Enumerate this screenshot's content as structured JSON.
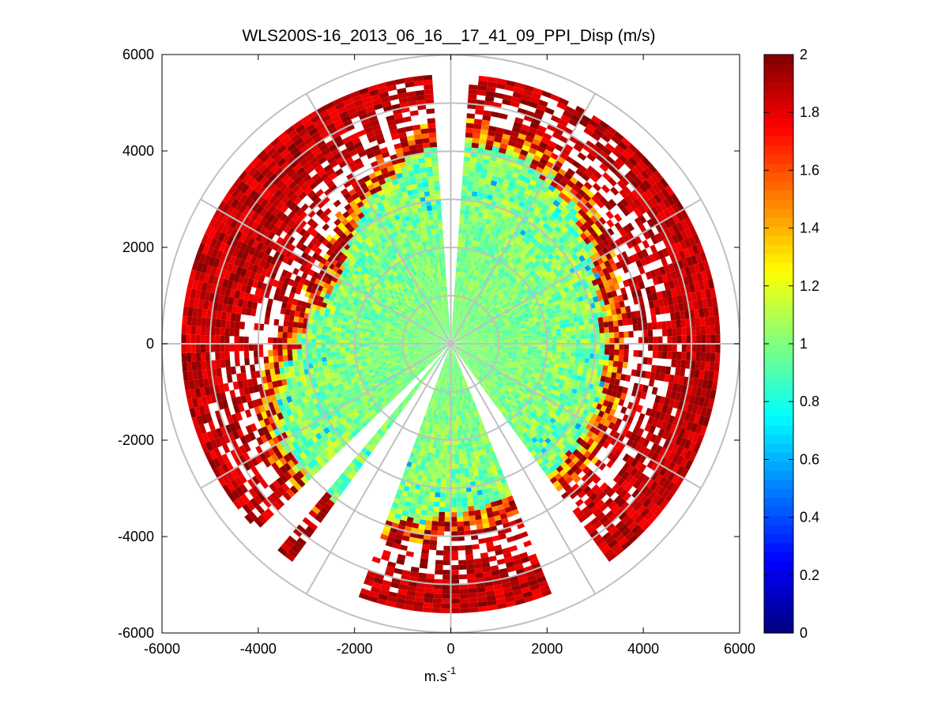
{
  "chart_data": {
    "type": "heatmap",
    "subtype": "polar-ppi",
    "title": "WLS200S-16_2013_06_16__17_41_09_PPI_Disp (m/s)",
    "xlabel_base": "m.s",
    "xlabel_sup": "-1",
    "ylabel": "",
    "xlim": [
      -6000,
      6000
    ],
    "ylim": [
      -6000,
      6000
    ],
    "xticks": [
      -6000,
      -4000,
      -2000,
      0,
      2000,
      4000,
      6000
    ],
    "yticks": [
      6000,
      4000,
      2000,
      0,
      -2000,
      -4000,
      -6000
    ],
    "range_rings": [
      1000,
      2000,
      3000,
      4000,
      5000,
      6000
    ],
    "spoke_angles_deg": [
      0,
      30,
      60,
      90,
      120,
      150,
      180,
      210,
      240,
      270,
      300,
      330
    ],
    "colorbar": {
      "colormap": "jet",
      "min": 0,
      "max": 2,
      "ticks": [
        0,
        0.2,
        0.4,
        0.6,
        0.8,
        1,
        1.2,
        1.4,
        1.6,
        1.8,
        2
      ]
    },
    "field_summary": {
      "typical_value": 1.0,
      "inner_range_m": 3500,
      "outer_range_m": 5000,
      "outer_values": "1.8-2.0 (dark red) at edge of coverage",
      "no_data_sectors_deg": [
        [
          -3,
          3
        ],
        [
          145,
          158
        ],
        [
          200,
          215
        ],
        [
          220,
          226
        ]
      ]
    }
  },
  "colors": {
    "grid": "#c0c0c0",
    "axis": "#000000",
    "background": "#ffffff"
  }
}
